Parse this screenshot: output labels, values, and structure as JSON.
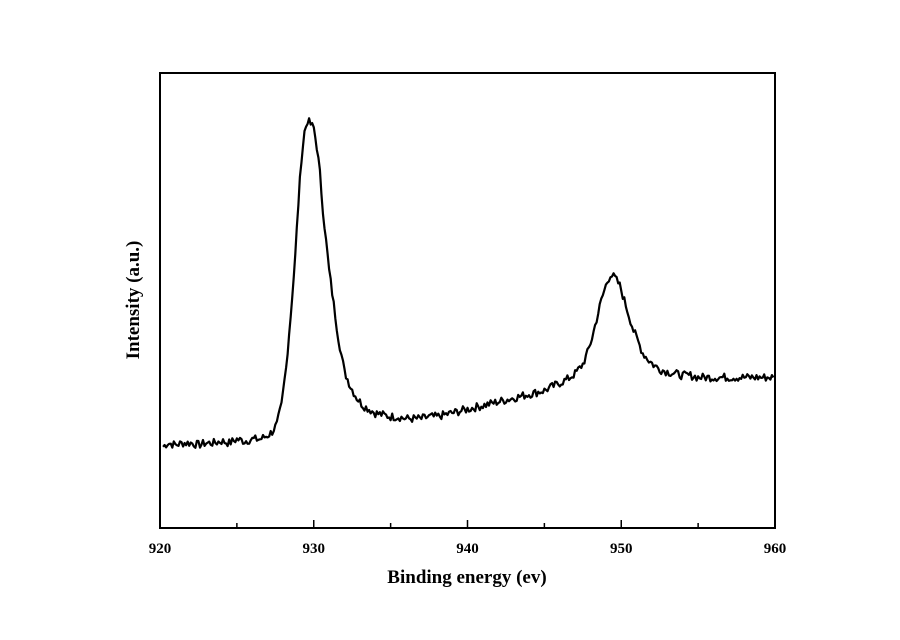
{
  "chart_data": {
    "type": "line",
    "title": "",
    "xlabel": "Binding energy (ev)",
    "ylabel": "Intensity (a.u.)",
    "xlim": [
      920,
      960
    ],
    "ylim": [
      0,
      100
    ],
    "x_ticks": [
      920,
      930,
      940,
      950,
      960
    ],
    "x_tick_labels": [
      "920",
      "930",
      "940",
      "950",
      "960"
    ],
    "y_tick_labels_shown": false,
    "grid": false,
    "legend": "none",
    "line_color": "#000000",
    "series": [
      {
        "x": [
          920.2,
          920.5,
          921,
          921.5,
          922,
          922.5,
          923,
          923.5,
          924,
          924.5,
          925,
          925.5,
          926,
          926.5,
          927,
          927.3,
          927.6,
          927.9,
          928.2,
          928.5,
          928.8,
          929.0,
          929.2,
          929.4,
          929.6,
          929.8,
          930.0,
          930.2,
          930.4,
          930.6,
          930.8,
          931.0,
          931.3,
          931.6,
          932.0,
          932.4,
          932.8,
          933.2,
          933.6,
          934.0,
          934.5,
          935,
          935.5,
          936,
          936.5,
          937,
          937.5,
          938,
          938.5,
          939,
          939.5,
          940,
          940.5,
          941,
          941.5,
          942,
          942.5,
          943,
          943.5,
          944,
          944.5,
          945,
          945.5,
          946,
          946.5,
          947,
          947.5,
          947.8,
          948.1,
          948.4,
          948.7,
          949.0,
          949.3,
          949.6,
          949.9,
          950.2,
          950.5,
          950.8,
          951.1,
          951.4,
          951.8,
          952.2,
          952.6,
          953,
          953.5,
          954,
          954.5,
          955,
          955.5,
          956,
          956.5,
          957,
          957.5,
          958,
          958.5,
          959,
          959.5,
          959.9
        ],
        "y": [
          11,
          12,
          11.5,
          12,
          12,
          11.5,
          12,
          12,
          12.5,
          12,
          13,
          12.5,
          13,
          13,
          14,
          15,
          17,
          22,
          32,
          46,
          62,
          76,
          88,
          95,
          98,
          97,
          96,
          91,
          84,
          74,
          66,
          58,
          49,
          40,
          31,
          27,
          24,
          22,
          21,
          20,
          19.5,
          19,
          19,
          18.5,
          18.5,
          18.5,
          19,
          19,
          19.5,
          20,
          20.5,
          21,
          21.5,
          22,
          22.5,
          23,
          23.5,
          24,
          24.5,
          25,
          25.5,
          26,
          27,
          28,
          29,
          30.5,
          33,
          36,
          40,
          45,
          50,
          54,
          57,
          56,
          54,
          50,
          46,
          42,
          39,
          36,
          34,
          32.5,
          31.5,
          31,
          30.5,
          30,
          30,
          29.5,
          29.5,
          29.5,
          29.5,
          29.5,
          29.5,
          29.5,
          29.5,
          29.5,
          29.5,
          29.5
        ]
      }
    ]
  }
}
